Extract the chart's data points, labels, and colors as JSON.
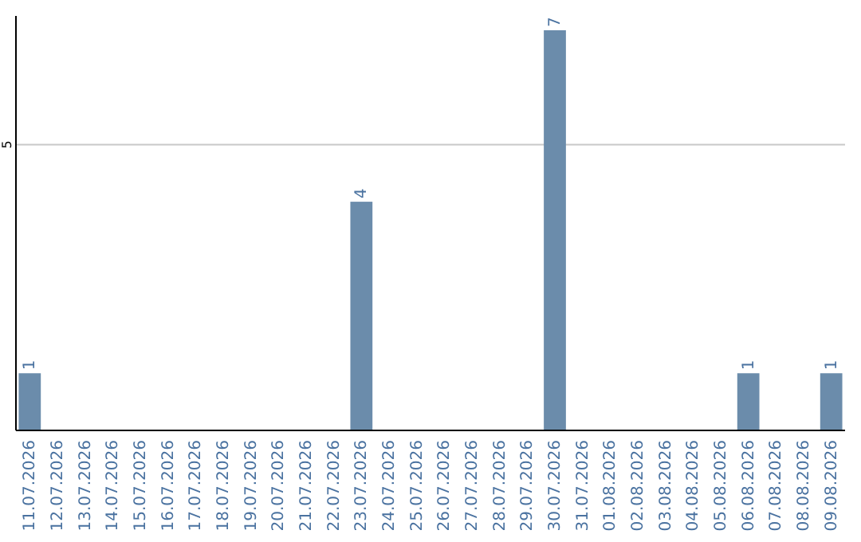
{
  "chart_data": {
    "type": "bar",
    "categories": [
      "11.07.2026",
      "12.07.2026",
      "13.07.2026",
      "14.07.2026",
      "15.07.2026",
      "16.07.2026",
      "17.07.2026",
      "18.07.2026",
      "19.07.2026",
      "20.07.2026",
      "21.07.2026",
      "22.07.2026",
      "23.07.2026",
      "24.07.2026",
      "25.07.2026",
      "26.07.2026",
      "27.07.2026",
      "28.07.2026",
      "29.07.2026",
      "30.07.2026",
      "31.07.2026",
      "01.08.2026",
      "02.08.2026",
      "03.08.2026",
      "04.08.2026",
      "05.08.2026",
      "06.08.2026",
      "07.08.2026",
      "08.08.2026",
      "09.08.2026"
    ],
    "values": [
      1,
      0,
      0,
      0,
      0,
      0,
      0,
      0,
      0,
      0,
      0,
      0,
      4,
      0,
      0,
      0,
      0,
      0,
      0,
      7,
      0,
      0,
      0,
      0,
      0,
      0,
      1,
      0,
      0,
      1
    ],
    "value_labels": [
      "1",
      null,
      null,
      null,
      null,
      null,
      null,
      null,
      null,
      null,
      null,
      null,
      "4",
      null,
      null,
      null,
      null,
      null,
      null,
      "7",
      null,
      null,
      null,
      null,
      null,
      null,
      "1",
      null,
      null,
      "1"
    ],
    "color": "#6b8cab",
    "ylim": [
      0,
      7.25
    ],
    "yticks": [
      5
    ],
    "grid": "y"
  }
}
